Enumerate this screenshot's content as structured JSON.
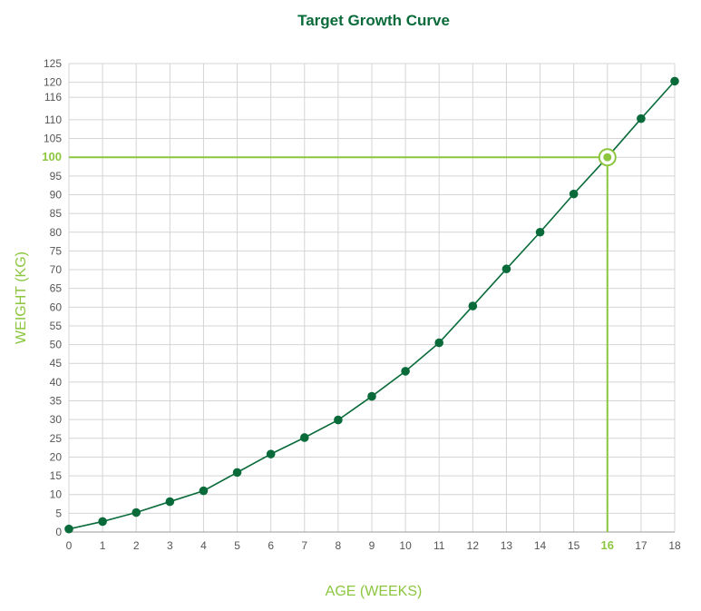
{
  "chart_data": {
    "type": "line",
    "title": "Target Growth Curve",
    "xlabel": "AGE (WEEKS)",
    "ylabel": "WEIGHT (KG)",
    "xlim": [
      0,
      18
    ],
    "ylim": [
      0,
      125
    ],
    "x_ticks": [
      0,
      1,
      2,
      3,
      4,
      5,
      6,
      7,
      8,
      9,
      10,
      11,
      12,
      13,
      14,
      15,
      16,
      17,
      18
    ],
    "y_ticks": [
      0,
      5,
      10,
      15,
      20,
      25,
      30,
      35,
      40,
      45,
      50,
      55,
      60,
      65,
      70,
      75,
      80,
      85,
      90,
      95,
      100,
      105,
      110,
      116,
      120,
      125
    ],
    "grid": true,
    "series": [
      {
        "x": [
          0,
          1,
          2,
          3,
          4,
          5,
          6,
          7,
          8,
          9,
          10,
          11,
          12,
          13,
          14,
          15,
          16,
          17,
          18
        ],
        "y": [
          0.8,
          2.8,
          5.2,
          8.1,
          11,
          15.9,
          20.8,
          25.2,
          29.9,
          36.2,
          42.9,
          50.5,
          60.3,
          70.2,
          80,
          90.2,
          100,
          110.3,
          120.3
        ]
      }
    ],
    "highlight": {
      "x": 16,
      "y": 100,
      "x_label": "16",
      "y_label": "100"
    },
    "colors": {
      "title": "#0a6b3a",
      "line": "#0a6b3a",
      "point": "#0a6b3a",
      "highlight": "#8cc63f",
      "axis_label": "#8cc63f",
      "grid": "#d4d4d4"
    }
  }
}
